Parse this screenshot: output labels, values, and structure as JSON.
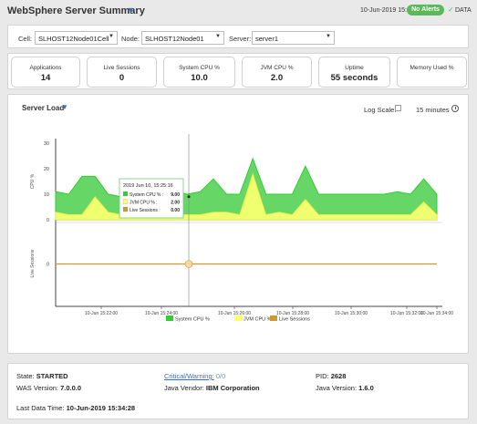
{
  "header": {
    "title": "WebSphere Server Summary",
    "date": "10-Jun-2019 15:35",
    "alerts_badge": "No Alerts",
    "data_label": "DATA",
    "colors": {
      "badge": "#5cb85c",
      "accent": "#3a6fb0"
    }
  },
  "filters": {
    "cell_label": "Cell:",
    "cell_value": "SLHOST12Node01Cell",
    "node_label": "Node:",
    "node_value": "SLHOST12Node01",
    "server_label": "Server:",
    "server_value": "server1"
  },
  "kpis": [
    {
      "label": "Applications",
      "value": "14"
    },
    {
      "label": "Live Sessions",
      "value": "0"
    },
    {
      "label": "System CPU %",
      "value": "10.0"
    },
    {
      "label": "JVM CPU %",
      "value": "2.0"
    },
    {
      "label": "Uptime",
      "value": "55 seconds"
    },
    {
      "label": "Memory Used %",
      "value": ""
    }
  ],
  "chart_panel": {
    "title": "Server Load",
    "log_scale_label": "Log Scale:",
    "log_scale_checked": false,
    "time_range": "15 minutes"
  },
  "chart_data": {
    "type": "area",
    "panels": [
      {
        "ylabel": "CPU %",
        "ylim": [
          0,
          30
        ],
        "yticks": [
          "0",
          "10",
          "20",
          "30"
        ]
      },
      {
        "ylabel": "Live Sessions",
        "ylim": [
          -1,
          1
        ],
        "yticks": [
          "0"
        ]
      }
    ],
    "x_tick_labels": [
      "10-Jun 15:22:00",
      "10-Jun 15:24:00",
      "10-Jun 15:26:00",
      "10-Jun 15:28:00",
      "10-Jun 15:30:00",
      "10-Jun 15:32:00",
      "10-Jun 15:34:00"
    ],
    "series": [
      {
        "name": "System CPU %",
        "color": "#33cc33",
        "values": [
          11,
          10,
          17,
          17,
          10,
          9,
          9,
          9,
          10,
          11,
          10,
          11,
          16,
          10,
          10,
          24,
          10,
          10,
          10,
          21,
          10,
          10,
          10,
          10,
          10,
          10,
          11,
          10,
          16,
          10
        ]
      },
      {
        "name": "JVM CPU %",
        "color": "#ffff66",
        "values": [
          3,
          2,
          2,
          9,
          3,
          2,
          2,
          2,
          2,
          2,
          2,
          2,
          3,
          3,
          2,
          18,
          2,
          3,
          2,
          8,
          2,
          2,
          2,
          2,
          2,
          2,
          2,
          2,
          7,
          2
        ]
      },
      {
        "name": "Live Sessions",
        "color": "#cc9933",
        "values": [
          0,
          0,
          0,
          0,
          0,
          0,
          0,
          0,
          0,
          0,
          0,
          0,
          0,
          0,
          0,
          0,
          0,
          0,
          0,
          0,
          0,
          0,
          0,
          0,
          0,
          0,
          0,
          0,
          0,
          0
        ]
      }
    ],
    "tooltip": {
      "time": "2019 Jun 10, 15:25:16",
      "rows": [
        {
          "name": "System CPU % :",
          "value": "9.00",
          "color": "#33cc33"
        },
        {
          "name": "JVM CPU % :",
          "value": "2.00",
          "color": "#ffff66"
        },
        {
          "name": "Live Sessions :",
          "value": "0.00",
          "color": "#cc9933"
        }
      ]
    },
    "legend": [
      "System CPU %",
      "JVM CPU %",
      "Live Sessions"
    ],
    "legend_position": "bottom",
    "grid": false
  },
  "status": {
    "state_label": "State:",
    "state_value": "STARTED",
    "cw_label": "Critical/Warning:",
    "cw_value": "0/0",
    "pid_label": "PID:",
    "pid_value": "2628",
    "was_label": "WAS Version:",
    "was_value": "7.0.0.0",
    "vendor_label": "Java Vendor:",
    "vendor_value": "IBM Corporation",
    "java_label": "Java Version:",
    "java_value": "1.6.0",
    "last_label": "Last Data Time:",
    "last_value": "10-Jun-2019 15:34:28"
  }
}
